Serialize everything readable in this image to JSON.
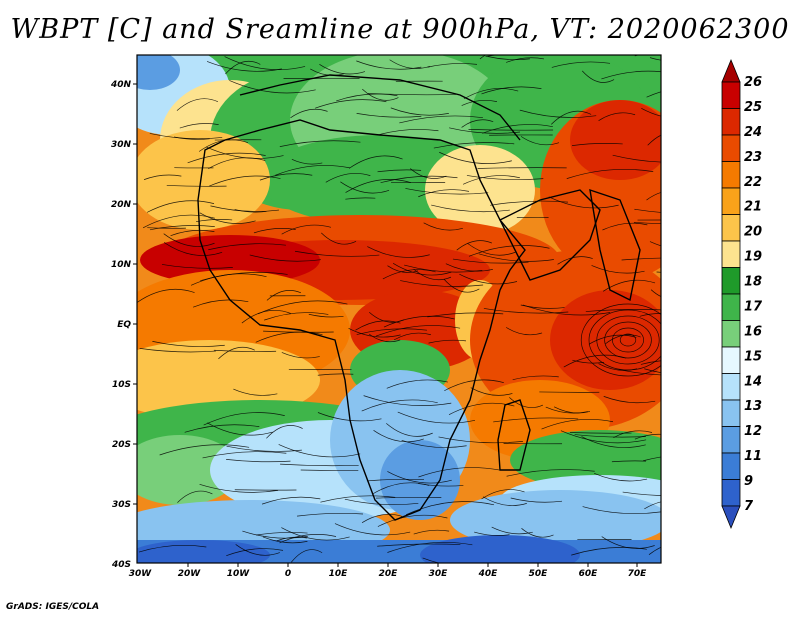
{
  "title": "WBPT [C] and Sreamline at 900hPa, VT: 2020062300",
  "credit": "GrADS: IGES/COLA",
  "map": {
    "lat_labels": [
      "40N",
      "30N",
      "20N",
      "10N",
      "EQ",
      "10S",
      "20S",
      "30S",
      "40S"
    ],
    "lon_labels": [
      "30W",
      "20W",
      "10W",
      "0",
      "10E",
      "20E",
      "30E",
      "40E",
      "50E",
      "60E",
      "70E"
    ],
    "lon_range": [
      -30,
      75
    ],
    "lat_range": [
      -40,
      45
    ]
  },
  "colorbar": {
    "labels": [
      "26",
      "25",
      "24",
      "23",
      "22",
      "21",
      "20",
      "19",
      "18",
      "17",
      "16",
      "15",
      "14",
      "13",
      "12",
      "11",
      "9",
      "7"
    ],
    "colors": [
      "#a50000",
      "#c80000",
      "#dc2800",
      "#e94b00",
      "#f57a00",
      "#f9a21a",
      "#fcc44a",
      "#fde38f",
      "#1f9a2a",
      "#3fb54a",
      "#78cf7a",
      "#e6f8ff",
      "#b6e2fb",
      "#89c3f0",
      "#5b9de2",
      "#3b7dd6",
      "#2e62cc",
      "#2b4fbd"
    ]
  }
}
